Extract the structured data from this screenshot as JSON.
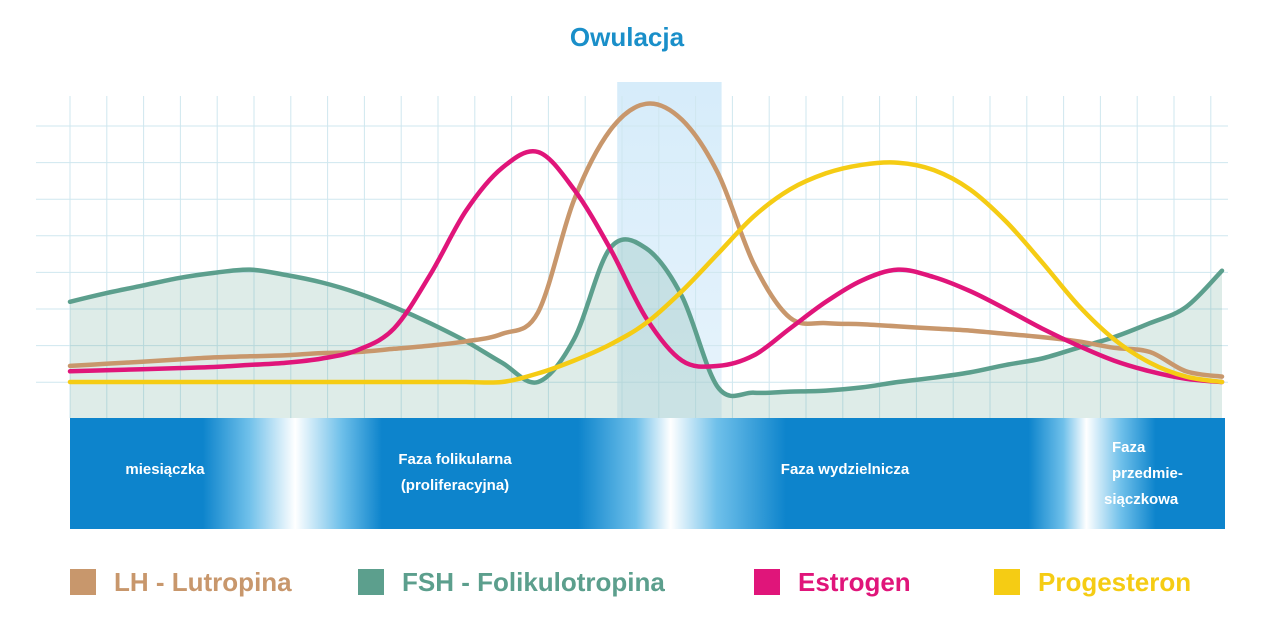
{
  "chart_data": {
    "type": "line",
    "title": "Owulacja",
    "xlabel": "",
    "ylabel": "",
    "grid": true,
    "legend_position": "bottom",
    "x": [
      0,
      1,
      2,
      3,
      4,
      5,
      6,
      7,
      8,
      9,
      10,
      11,
      12,
      13,
      14,
      15,
      16,
      17,
      18,
      19,
      20,
      21,
      22,
      23,
      24,
      25,
      26,
      27,
      28,
      29,
      30,
      31,
      32
    ],
    "ylim": [
      -0.1,
      2.7
    ],
    "ovulation_band": [
      15.2,
      18.1
    ],
    "phases": [
      {
        "label": [
          "miesiączka"
        ]
      },
      {
        "label": [
          "Faza folikularna",
          "(proliferacyjna)"
        ]
      },
      {
        "label": [
          "Faza wydzielnicza"
        ]
      },
      {
        "label": [
          "Faza",
          "przedmie-",
          "siączkowa"
        ]
      }
    ],
    "series": [
      {
        "name": "LH - Lutropina",
        "color": "#c8976c",
        "values": [
          0.15,
          0.17,
          0.19,
          0.21,
          0.23,
          0.24,
          0.25,
          0.27,
          0.28,
          0.31,
          0.34,
          0.38,
          0.45,
          0.65,
          1.7,
          2.35,
          2.6,
          2.45,
          1.95,
          1.1,
          0.6,
          0.55,
          0.54,
          0.52,
          0.5,
          0.48,
          0.45,
          0.42,
          0.38,
          0.32,
          0.28,
          0.1,
          0.05
        ]
      },
      {
        "name": "FSH - Folikulotropina",
        "color": "#5c9f8d",
        "values": [
          0.75,
          0.83,
          0.9,
          0.97,
          1.02,
          1.05,
          1.0,
          0.93,
          0.83,
          0.7,
          0.55,
          0.38,
          0.18,
          0.0,
          0.4,
          1.25,
          1.25,
          0.8,
          -0.05,
          -0.1,
          -0.09,
          -0.08,
          -0.05,
          0.0,
          0.04,
          0.09,
          0.16,
          0.22,
          0.32,
          0.42,
          0.55,
          0.7,
          1.04
        ]
      },
      {
        "name": "Estrogen",
        "color": "#e0157a",
        "values": [
          0.1,
          0.11,
          0.12,
          0.13,
          0.14,
          0.16,
          0.18,
          0.22,
          0.3,
          0.5,
          1.0,
          1.6,
          2.0,
          2.15,
          1.8,
          1.25,
          0.6,
          0.2,
          0.15,
          0.25,
          0.5,
          0.75,
          0.95,
          1.05,
          0.98,
          0.85,
          0.68,
          0.5,
          0.34,
          0.2,
          0.1,
          0.03,
          0.0
        ]
      },
      {
        "name": "Progesteron",
        "color": "#f5cc14",
        "values": [
          0.0,
          0.0,
          0.0,
          0.0,
          0.0,
          0.0,
          0.0,
          0.0,
          0.0,
          0.0,
          0.0,
          0.0,
          0.0,
          0.08,
          0.2,
          0.35,
          0.55,
          0.85,
          1.2,
          1.55,
          1.8,
          1.95,
          2.03,
          2.05,
          1.98,
          1.8,
          1.5,
          1.12,
          0.72,
          0.4,
          0.18,
          0.05,
          0.0
        ]
      }
    ]
  }
}
